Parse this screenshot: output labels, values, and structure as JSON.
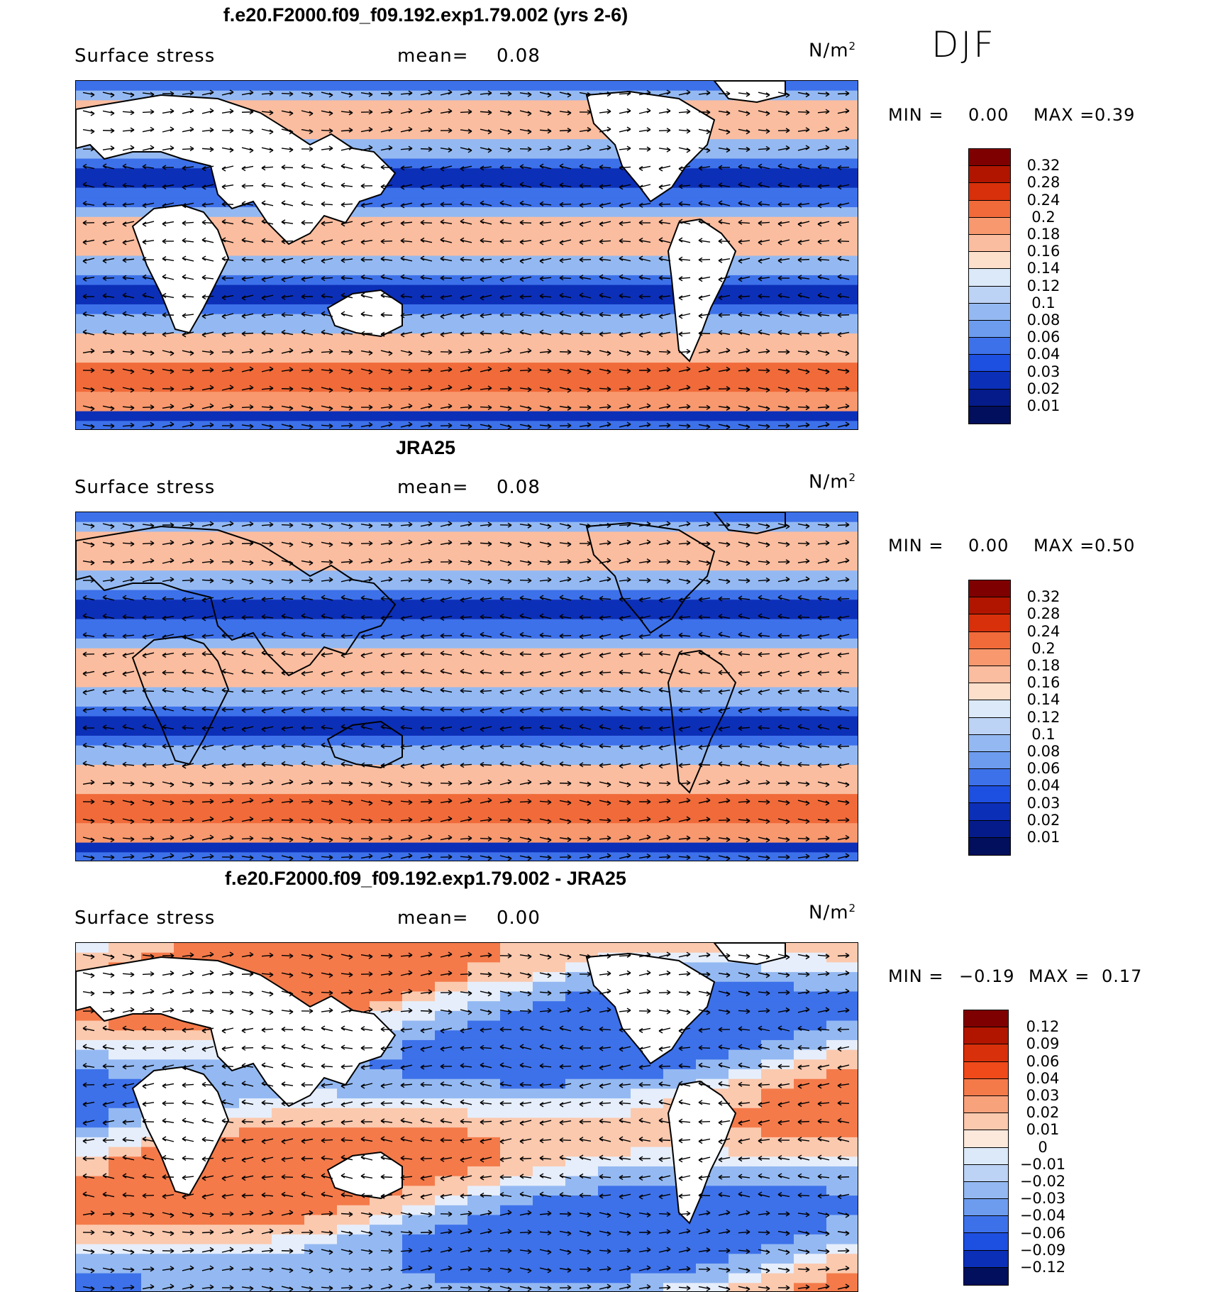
{
  "season": "DJF",
  "panels": [
    {
      "title": "f.e20.F2000.f09_f09.192.exp1.79.002 (yrs 2-6)",
      "field": "Surface stress",
      "mean_label": "mean=",
      "mean_value": "0.08",
      "units_base": "N/m",
      "units_exp": "2",
      "min_label": "MIN =",
      "min_value": "0.00",
      "max_label": "MAX =",
      "max_value": "0.39",
      "colorbar_ticks": [
        "0.32",
        "0.28",
        "0.24",
        "0.2",
        "0.18",
        "0.16",
        "0.14",
        "0.12",
        "0.1",
        "0.08",
        "0.06",
        "0.04",
        "0.03",
        "0.02",
        "0.01"
      ],
      "colorbar_colors": [
        "#7f0000",
        "#b11500",
        "#d8300b",
        "#f16a39",
        "#f8986e",
        "#fbbd9f",
        "#fde0cb",
        "#dbe9f8",
        "#bdd3f5",
        "#94b9f2",
        "#6d9cef",
        "#3d71ea",
        "#1d4fe0",
        "#0c2fb8",
        "#051b8a",
        "#020f5c"
      ],
      "field_style": "model"
    },
    {
      "title": "JRA25",
      "field": "Surface stress",
      "mean_label": "mean=",
      "mean_value": "0.08",
      "units_base": "N/m",
      "units_exp": "2",
      "min_label": "MIN =",
      "min_value": "0.00",
      "max_label": "MAX =",
      "max_value": "0.50",
      "colorbar_ticks": [
        "0.32",
        "0.28",
        "0.24",
        "0.2",
        "0.18",
        "0.16",
        "0.14",
        "0.12",
        "0.1",
        "0.08",
        "0.06",
        "0.04",
        "0.03",
        "0.02",
        "0.01"
      ],
      "colorbar_colors": [
        "#7f0000",
        "#b11500",
        "#d8300b",
        "#f16a39",
        "#f8986e",
        "#fbbd9f",
        "#fde0cb",
        "#dbe9f8",
        "#bdd3f5",
        "#94b9f2",
        "#6d9cef",
        "#3d71ea",
        "#1d4fe0",
        "#0c2fb8",
        "#051b8a",
        "#020f5c"
      ],
      "field_style": "obs"
    },
    {
      "title": "f.e20.F2000.f09_f09.192.exp1.79.002 - JRA25",
      "field": "Surface stress",
      "mean_label": "mean=",
      "mean_value": "0.00",
      "units_base": "N/m",
      "units_exp": "2",
      "min_label": "MIN =",
      "min_value": "−0.19",
      "max_label": "MAX =",
      "max_value": "0.17",
      "colorbar_ticks": [
        "0.12",
        "0.09",
        "0.06",
        "0.04",
        "0.03",
        "0.02",
        "0.01",
        "0",
        "−0.01",
        "−0.02",
        "−0.03",
        "−0.04",
        "−0.06",
        "−0.09",
        "−0.12"
      ],
      "colorbar_colors": [
        "#7f0000",
        "#b11500",
        "#d8300b",
        "#f04a1a",
        "#f47a4a",
        "#f8a27c",
        "#fbc9ae",
        "#fde9dc",
        "#dbe9f8",
        "#bdd3f5",
        "#94b9f2",
        "#6d9cef",
        "#3d71ea",
        "#1d4fe0",
        "#0c2fb8",
        "#020f5c"
      ],
      "field_style": "diff"
    }
  ]
}
